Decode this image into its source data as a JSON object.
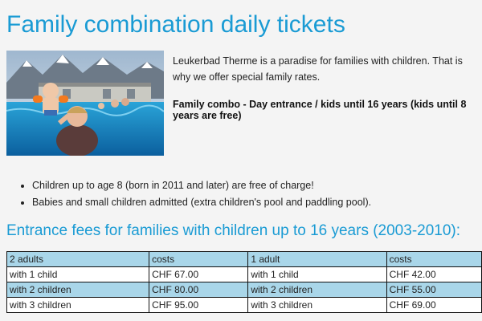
{
  "page": {
    "title": "Family combination daily tickets",
    "intro": "Leukerbad Therme is a paradise for families with children. That is why we offer special family rates.",
    "combo": "Family combo - Day entrance / kids until 16 years (kids until 8 years are free)",
    "bullets": [
      "Children up to age 8 (born in 2011 and later) are free of charge!",
      "Babies and small children admitted (extra children's pool and paddling pool)."
    ],
    "section_title": "Entrance fees for families with children up to 16 years (2003-2010):"
  },
  "fees_table": {
    "headers": [
      "2 adults",
      "costs",
      "1 adult",
      "costs"
    ],
    "rows": [
      [
        "with 1 child",
        "CHF 67.00",
        "with 1 child",
        "CHF 42.00"
      ],
      [
        "with 2 children",
        "CHF 80.00",
        "with 2 children",
        "CHF 55.00"
      ],
      [
        "with 3 children",
        "CHF 95.00",
        "with 3 children",
        "CHF 69.00"
      ]
    ]
  },
  "colors": {
    "accent": "#1a9bd4",
    "table_highlight": "#a9d6e9",
    "background": "#f4f4f4"
  }
}
